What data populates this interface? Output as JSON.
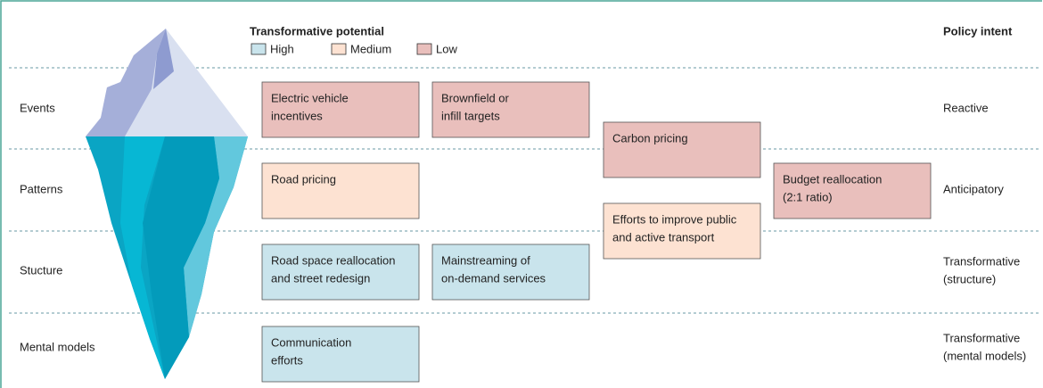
{
  "legend": {
    "title": "Transformative potential",
    "items": [
      {
        "label": "High",
        "color": "#c9e4ec"
      },
      {
        "label": "Medium",
        "color": "#fde2d2"
      },
      {
        "label": "Low",
        "color": "#e9bfbc"
      }
    ]
  },
  "intent_title": "Policy intent",
  "rows": [
    {
      "label": "Events",
      "intent": [
        "Reactive"
      ]
    },
    {
      "label": "Patterns",
      "intent": [
        "Anticipatory"
      ]
    },
    {
      "label": "Stucture",
      "intent": [
        "Transformative",
        "(structure)"
      ]
    },
    {
      "label": "Mental models",
      "intent": [
        "Transformative",
        "(mental models)"
      ]
    }
  ],
  "boxes": [
    {
      "lines": [
        "Electric vehicle",
        "incentives"
      ],
      "color": "#e9bfbc"
    },
    {
      "lines": [
        "Brownfield or",
        "infill targets"
      ],
      "color": "#e9bfbc"
    },
    {
      "lines": [
        "Carbon pricing"
      ],
      "color": "#e9bfbc"
    },
    {
      "lines": [
        "Budget reallocation",
        "(2:1 ratio)"
      ],
      "color": "#e9bfbc"
    },
    {
      "lines": [
        "Road pricing"
      ],
      "color": "#fde2d2"
    },
    {
      "lines": [
        "Efforts to improve public",
        "and active transport"
      ],
      "color": "#fde2d2"
    },
    {
      "lines": [
        "Road space reallocation",
        "and street redesign"
      ],
      "color": "#c9e4ec"
    },
    {
      "lines": [
        "Mainstreaming of",
        "on-demand services"
      ],
      "color": "#c9e4ec"
    },
    {
      "lines": [
        "Communication",
        "efforts"
      ],
      "color": "#c9e4ec"
    }
  ]
}
